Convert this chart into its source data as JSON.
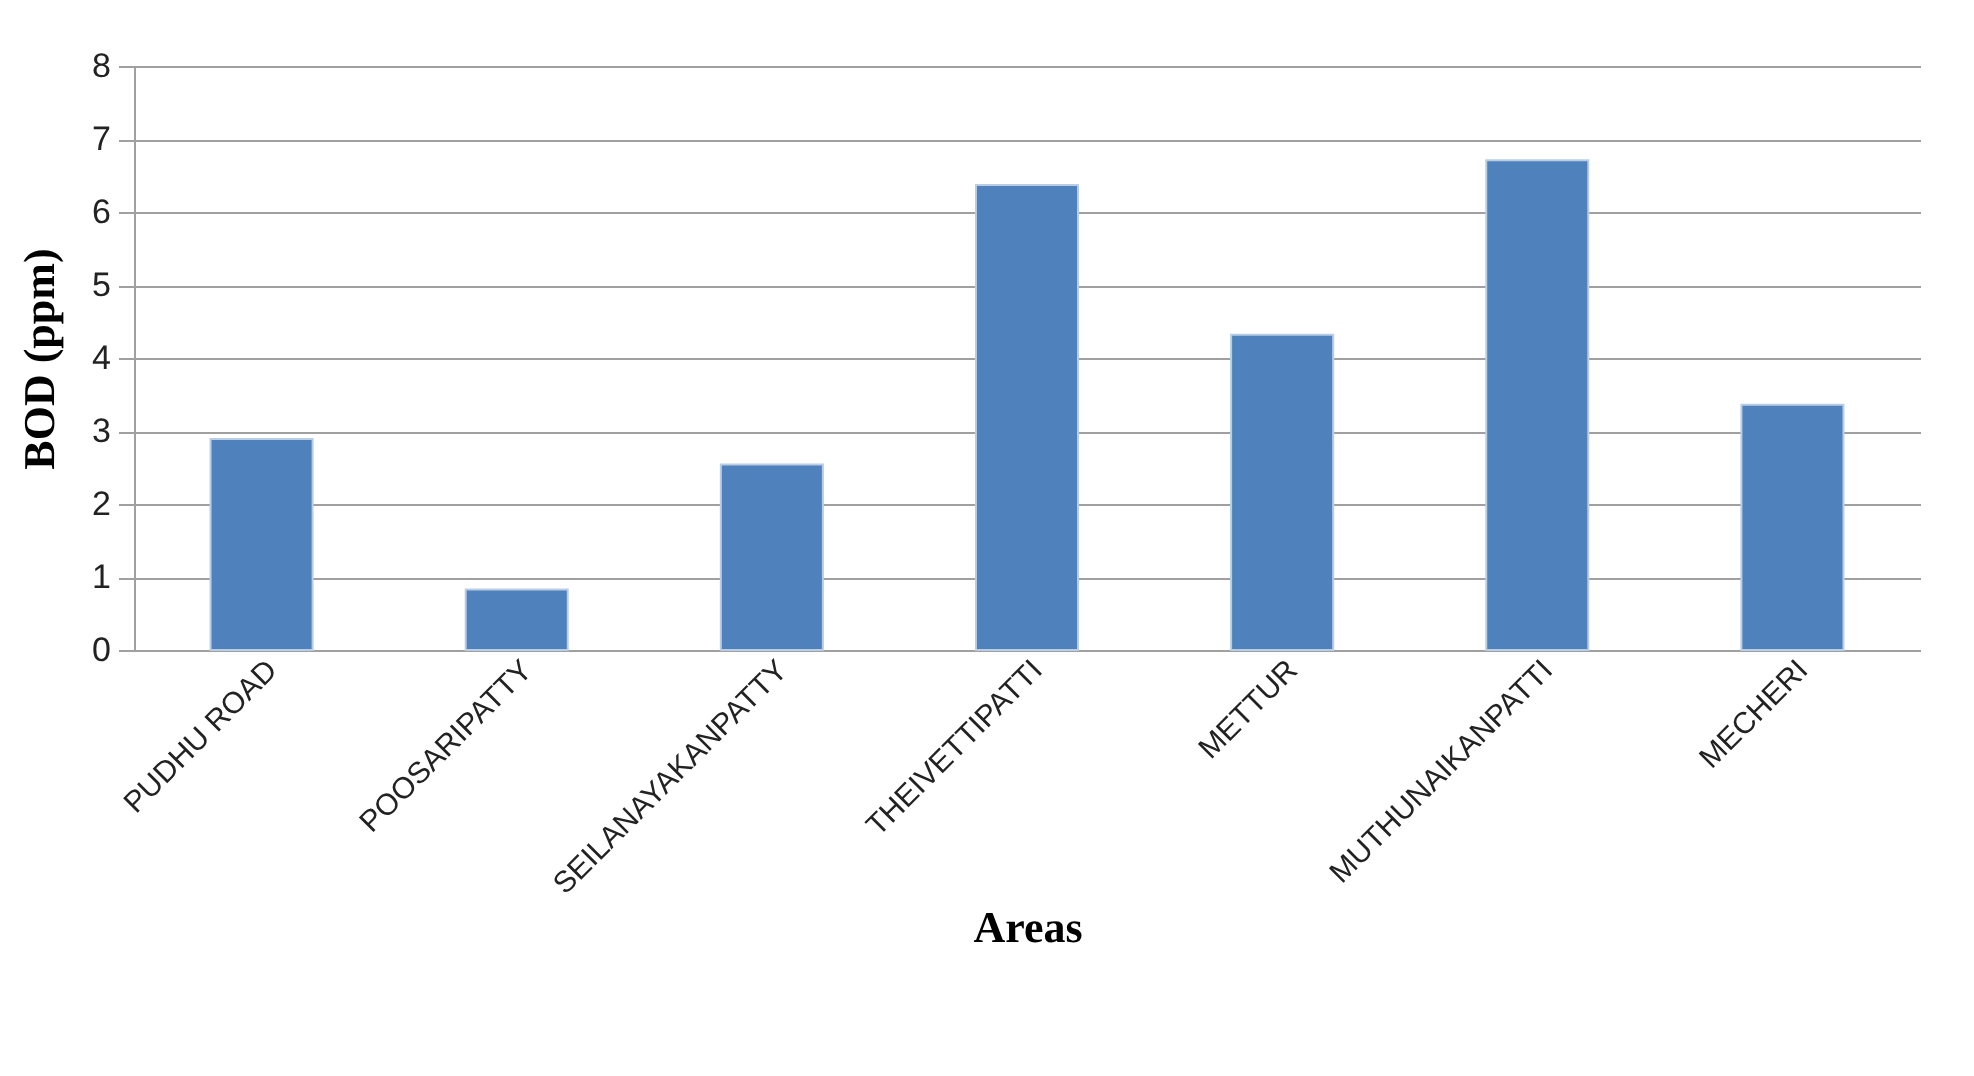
{
  "chart_data": {
    "type": "bar",
    "xlabel": "Areas",
    "ylabel": "BOD (ppm)",
    "categories": [
      "PUDHU ROAD",
      "POOSARIPATTY",
      "SEILANAYAKANPATTY",
      "THEIVETTIPATTI",
      "METTUR",
      "MUTHUNAIKANPATTI",
      "MECHERI"
    ],
    "values": [
      2.89,
      0.83,
      2.54,
      6.37,
      4.32,
      6.71,
      3.36
    ],
    "color": "#4f81bd",
    "ylim": [
      0,
      8
    ],
    "yticks": [
      0,
      1,
      2,
      3,
      4,
      5,
      6,
      7,
      8
    ],
    "grid": "y"
  }
}
